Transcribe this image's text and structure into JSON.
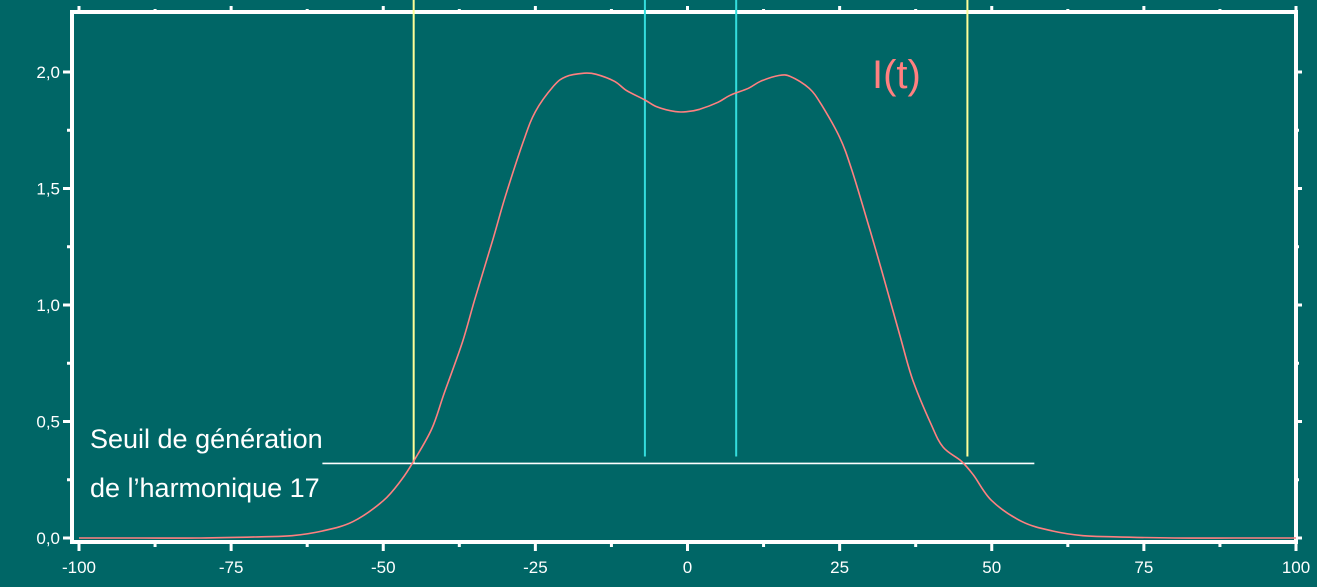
{
  "chart_data": {
    "type": "line",
    "xlim": [
      -100,
      100
    ],
    "ylim": [
      0,
      2.25
    ],
    "x_ticks": [
      -100,
      -75,
      -50,
      -25,
      0,
      25,
      50,
      75,
      100
    ],
    "x_tick_labels": [
      "-100",
      "-75",
      "-50",
      "-25",
      "0",
      "25",
      "50",
      "75",
      "100"
    ],
    "y_ticks": [
      0,
      0.5,
      1.0,
      1.5,
      2.0
    ],
    "y_tick_labels": [
      "0,0",
      "0,5",
      "1,0",
      "1,5",
      "2,0"
    ],
    "grid": false,
    "series": [
      {
        "name": "I(t)",
        "color": "#ff8080",
        "x": [
          -100,
          -90,
          -80,
          -70,
          -65,
          -60,
          -55,
          -50,
          -47,
          -45,
          -42,
          -40,
          -37,
          -35,
          -32,
          -30,
          -27,
          -25,
          -22,
          -20,
          -17,
          -15,
          -12,
          -10,
          -7,
          -5,
          -2,
          0,
          2,
          5,
          7,
          10,
          12,
          15,
          17,
          20,
          22,
          25,
          27,
          30,
          32,
          35,
          37,
          40,
          42,
          45,
          47,
          50,
          55,
          60,
          65,
          70,
          80,
          90,
          100
        ],
        "y": [
          0.0,
          0.0,
          0.0,
          0.005,
          0.01,
          0.03,
          0.07,
          0.16,
          0.25,
          0.33,
          0.47,
          0.62,
          0.84,
          1.02,
          1.28,
          1.46,
          1.7,
          1.83,
          1.94,
          1.98,
          1.995,
          1.99,
          1.96,
          1.92,
          1.88,
          1.85,
          1.83,
          1.83,
          1.84,
          1.87,
          1.9,
          1.93,
          1.96,
          1.985,
          1.98,
          1.93,
          1.86,
          1.72,
          1.58,
          1.32,
          1.14,
          0.86,
          0.68,
          0.49,
          0.39,
          0.33,
          0.27,
          0.16,
          0.07,
          0.03,
          0.01,
          0.005,
          0.0,
          0.0,
          0.0
        ]
      }
    ],
    "series_label": "I(t)",
    "threshold": {
      "y": 0.32,
      "x_start": -60,
      "x_end": 57,
      "color": "#ffffff"
    },
    "annotation_lines": [
      "Seuil de génération",
      "de l’harmonique 17"
    ],
    "vertical_markers": [
      {
        "x": -45,
        "y_start": 0.32,
        "color": "#ffff99"
      },
      {
        "x": 46,
        "y_start": 0.35,
        "color": "#ffff99"
      },
      {
        "x": -7,
        "y_start": 0.35,
        "color": "#33dddd"
      },
      {
        "x": 8,
        "y_start": 0.35,
        "color": "#33dddd"
      }
    ],
    "frame_color": "#ffffff",
    "background": "#006666"
  }
}
